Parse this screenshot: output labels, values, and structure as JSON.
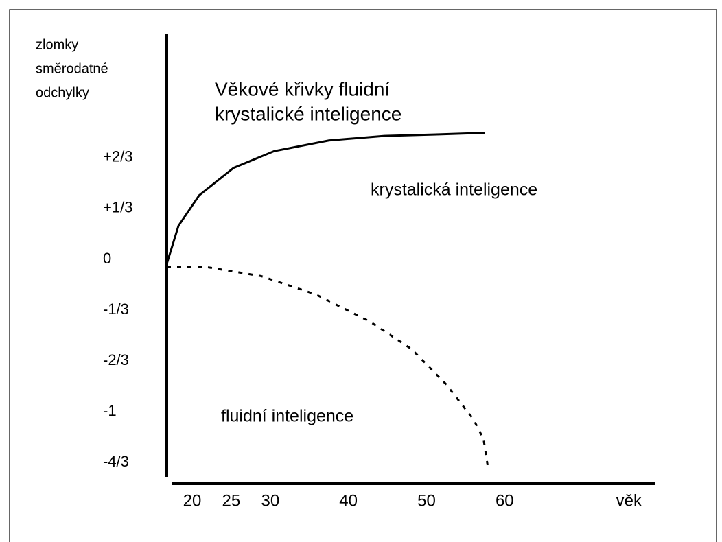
{
  "chart_data": {
    "type": "line",
    "title": [
      "Věkové křivky fluidní",
      "krystalické inteligence"
    ],
    "y_label": [
      "zlomky",
      "směrodatné",
      "odchylky"
    ],
    "x_label": "věk",
    "xlim": [
      16.75,
      79.3
    ],
    "xticks": [
      20,
      25,
      30,
      40,
      50,
      60
    ],
    "ylim": [
      -1.428,
      1.477
    ],
    "yticks": [
      {
        "value": 0.6667,
        "label": "+2/3"
      },
      {
        "value": 0.3333,
        "label": "+1/3"
      },
      0,
      {
        "value": -0.3333,
        "label": "-1/3"
      },
      {
        "value": -0.6667,
        "label": "-2/3"
      },
      {
        "value": -1,
        "label": "-1"
      },
      {
        "value": -1.3333,
        "label": "-4/3"
      }
    ],
    "grid": false,
    "series": [
      {
        "name": "krystalická inteligence",
        "color": "#000000",
        "dashed": false,
        "x": [
          16.75,
          18.25,
          20.9,
          25.3,
          30.5,
          37.5,
          44.6,
          51.6,
          57.5
        ],
        "values": [
          -0.03,
          0.22,
          0.42,
          0.6,
          0.71,
          0.78,
          0.81,
          0.82,
          0.83
        ]
      },
      {
        "name": "fluidní inteligence",
        "color": "#000000",
        "dashed": true,
        "x": [
          16.75,
          21.75,
          28.8,
          35.8,
          42.8,
          48.1,
          52.5,
          56.0,
          57.3,
          57.9
        ],
        "values": [
          -0.05,
          -0.05,
          -0.11,
          -0.23,
          -0.41,
          -0.59,
          -0.82,
          -1.05,
          -1.18,
          -1.38
        ]
      }
    ]
  }
}
